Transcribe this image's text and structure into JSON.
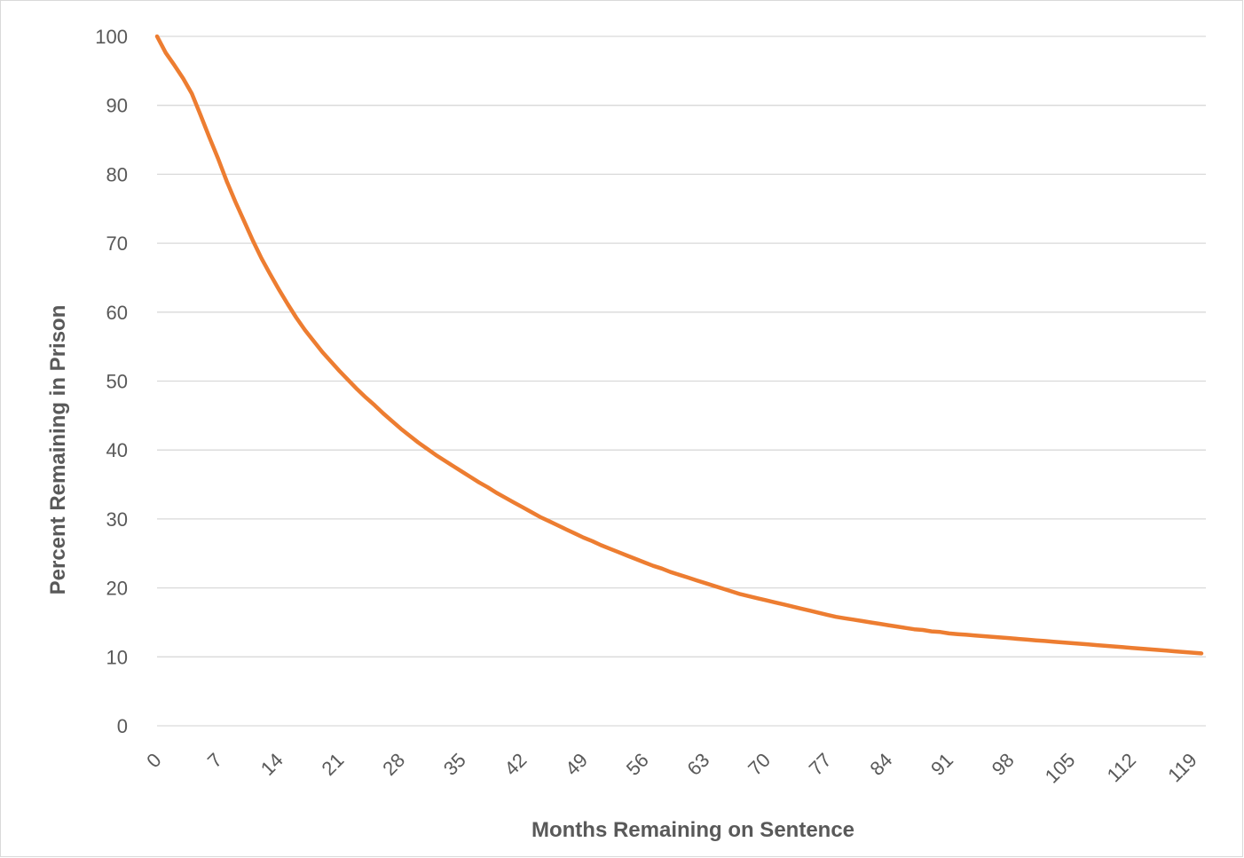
{
  "chart_data": {
    "type": "line",
    "title": "",
    "xlabel": "Months Remaining on Sentence",
    "ylabel": "Percent Remaining in Prison",
    "xlim": [
      0,
      120
    ],
    "ylim": [
      0,
      100
    ],
    "y_ticks": [
      0,
      10,
      20,
      30,
      40,
      50,
      60,
      70,
      80,
      90,
      100
    ],
    "x_tick_labels": [
      "0",
      "7",
      "14",
      "21",
      "28",
      "35",
      "42",
      "49",
      "56",
      "63",
      "70",
      "77",
      "84",
      "91",
      "98",
      "105",
      "112",
      "119"
    ],
    "x_ticks": [
      0,
      7,
      14,
      21,
      28,
      35,
      42,
      49,
      56,
      63,
      70,
      77,
      84,
      91,
      98,
      105,
      112,
      119
    ],
    "grid": "horizontal",
    "legend": "none",
    "series": [
      {
        "color": "#ed7d31",
        "x": [
          0,
          1,
          2,
          3,
          4,
          5,
          6,
          7,
          8,
          9,
          10,
          11,
          12,
          13,
          14,
          15,
          16,
          17,
          18,
          19,
          20,
          21,
          22,
          23,
          24,
          25,
          26,
          27,
          28,
          29,
          30,
          31,
          32,
          33,
          34,
          35,
          36,
          37,
          38,
          39,
          40,
          41,
          42,
          43,
          44,
          45,
          46,
          47,
          48,
          49,
          50,
          51,
          52,
          53,
          54,
          55,
          56,
          57,
          58,
          59,
          60,
          61,
          62,
          63,
          64,
          65,
          66,
          67,
          68,
          69,
          70,
          71,
          72,
          73,
          74,
          75,
          76,
          77,
          78,
          79,
          80,
          81,
          82,
          83,
          84,
          85,
          86,
          87,
          88,
          89,
          90,
          91,
          92,
          93,
          94,
          95,
          96,
          97,
          98,
          99,
          100,
          101,
          102,
          103,
          104,
          105,
          106,
          107,
          108,
          109,
          110,
          111,
          112,
          113,
          114,
          115,
          116,
          117,
          118,
          119,
          120
        ],
        "y": [
          100,
          97.6,
          95.8,
          93.9,
          91.7,
          88.6,
          85.4,
          82.3,
          79.0,
          76.0,
          73.2,
          70.4,
          67.8,
          65.5,
          63.3,
          61.2,
          59.2,
          57.4,
          55.8,
          54.2,
          52.8,
          51.4,
          50.1,
          48.8,
          47.6,
          46.5,
          45.3,
          44.2,
          43.1,
          42.1,
          41.1,
          40.2,
          39.3,
          38.5,
          37.7,
          36.9,
          36.1,
          35.3,
          34.6,
          33.8,
          33.1,
          32.4,
          31.7,
          31.0,
          30.3,
          29.7,
          29.1,
          28.5,
          27.9,
          27.3,
          26.8,
          26.2,
          25.7,
          25.2,
          24.7,
          24.2,
          23.7,
          23.2,
          22.8,
          22.3,
          21.9,
          21.5,
          21.1,
          20.7,
          20.3,
          19.9,
          19.5,
          19.1,
          18.8,
          18.5,
          18.2,
          17.9,
          17.6,
          17.3,
          17.0,
          16.7,
          16.4,
          16.1,
          15.8,
          15.6,
          15.4,
          15.2,
          15.0,
          14.8,
          14.6,
          14.4,
          14.2,
          14.0,
          13.9,
          13.7,
          13.6,
          13.4,
          13.3,
          13.2,
          13.1,
          13.0,
          12.9,
          12.8,
          12.7,
          12.6,
          12.5,
          12.4,
          12.3,
          12.2,
          12.1,
          12.0,
          11.9,
          11.8,
          11.7,
          11.6,
          11.5,
          11.4,
          11.3,
          11.2,
          11.1,
          11.0,
          10.9,
          10.8,
          10.7,
          10.6,
          10.5
        ]
      }
    ]
  }
}
